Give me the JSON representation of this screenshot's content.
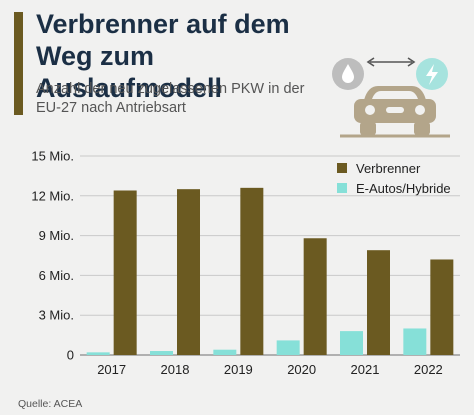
{
  "header": {
    "title": "Verbrenner auf dem Weg zum Auslaufmodell",
    "subtitle": "Anzahl der neu zugelassenen PKW in der EU-27 nach Antriebsart"
  },
  "footer": {
    "source": "Quelle: ACEA"
  },
  "hero_icons": [
    "water-drop-icon",
    "lightning-icon",
    "arrow-exchange-icon",
    "car-icon"
  ],
  "colors": {
    "background": "#f1f1f0",
    "accent": "#6b5a21",
    "title": "#1b2f45",
    "verbrenner": "#6b5a21",
    "e_autos": "#86e0d8",
    "grid": "#c9c9c9"
  },
  "chart_data": {
    "type": "bar",
    "title": "Verbrenner auf dem Weg zum Auslaufmodell",
    "subtitle": "Anzahl der neu zugelassenen PKW in der EU-27 nach Antriebsart",
    "categories": [
      "2017",
      "2018",
      "2019",
      "2020",
      "2021",
      "2022"
    ],
    "series": [
      {
        "name": "Verbrenner",
        "color": "#6b5a21",
        "values": [
          12.4,
          12.5,
          12.6,
          8.8,
          7.9,
          7.2
        ]
      },
      {
        "name": "E-Autos/Hybride",
        "color": "#86e0d8",
        "values": [
          0.2,
          0.3,
          0.4,
          1.1,
          1.8,
          2.0
        ]
      }
    ],
    "yticks": [
      0,
      3,
      6,
      9,
      12,
      15
    ],
    "ytick_labels": [
      "0",
      "3 Mio.",
      "6 Mio.",
      "9 Mio.",
      "12 Mio.",
      "15 Mio."
    ],
    "ylim": [
      0,
      15
    ],
    "grid": true,
    "legend_position": "top-right",
    "source": "Quelle: ACEA"
  }
}
